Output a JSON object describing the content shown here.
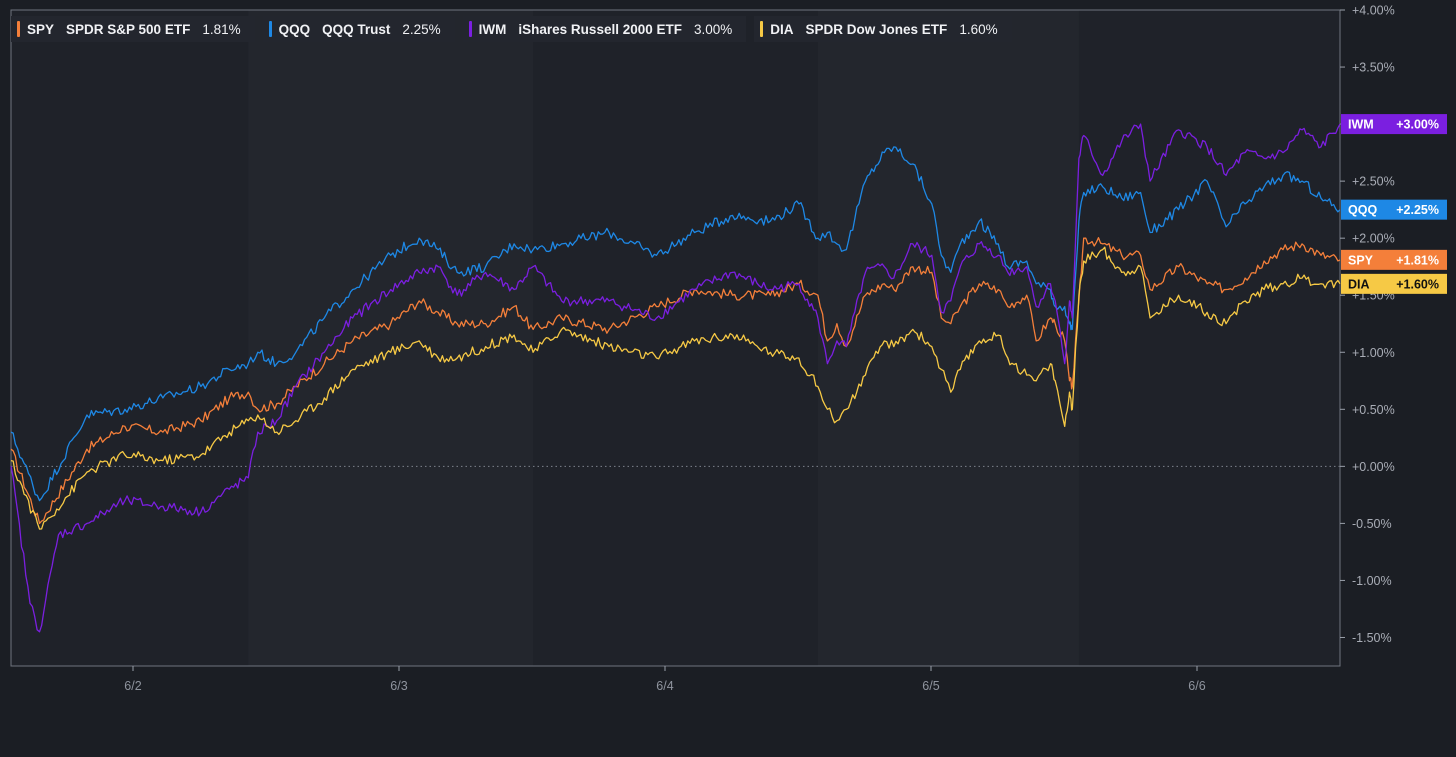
{
  "chart_data": {
    "type": "line",
    "x_ticks": [
      "6/2",
      "6/3",
      "6/4",
      "6/5",
      "6/6"
    ],
    "y_ticks": [
      "+4.00%",
      "+3.50%",
      "+3.00%",
      "+2.50%",
      "+2.00%",
      "+1.50%",
      "+1.00%",
      "+0.50%",
      "+0.00%",
      "-0.50%",
      "-1.00%",
      "-1.50%"
    ],
    "ylim": [
      -1.75,
      4.0
    ],
    "zero_line": true,
    "colors": {
      "background": "#1b1e24",
      "plot_bg": "#1f2229",
      "session_shade": "#23262d",
      "axis": "#9aa0aa",
      "zero": "#7d828c"
    },
    "series": [
      {
        "ticker": "SPY",
        "name": "SPDR S&P 500 ETF",
        "legend_value": "1.81%",
        "label": "+1.81%",
        "color": "#f47f3a",
        "label_text_color": "#ffffff",
        "last": 1.81,
        "points": [
          [
            0,
            0.15
          ],
          [
            0.3,
            -0.5
          ],
          [
            0.8,
            0.15
          ],
          [
            1.2,
            0.35
          ],
          [
            1.6,
            0.3
          ],
          [
            2.0,
            0.4
          ],
          [
            2.3,
            0.6
          ],
          [
            2.5,
            0.65
          ],
          [
            2.6,
            0.5
          ],
          [
            2.8,
            0.55
          ],
          [
            3.0,
            0.7
          ],
          [
            3.3,
            0.9
          ],
          [
            3.6,
            1.1
          ],
          [
            4.0,
            1.25
          ],
          [
            4.3,
            1.45
          ],
          [
            4.5,
            1.35
          ],
          [
            4.7,
            1.25
          ],
          [
            5.0,
            1.25
          ],
          [
            5.3,
            1.4
          ],
          [
            5.5,
            1.2
          ],
          [
            5.8,
            1.3
          ],
          [
            6.3,
            1.2
          ],
          [
            6.8,
            1.4
          ],
          [
            7.2,
            1.55
          ],
          [
            7.6,
            1.5
          ],
          [
            8.0,
            1.5
          ],
          [
            8.3,
            1.6
          ],
          [
            8.5,
            1.5
          ],
          [
            8.6,
            1.1
          ],
          [
            8.7,
            1.25
          ],
          [
            8.8,
            1.05
          ],
          [
            9.0,
            1.5
          ],
          [
            9.2,
            1.6
          ],
          [
            9.3,
            1.55
          ],
          [
            9.5,
            1.75
          ],
          [
            9.7,
            1.7
          ],
          [
            9.8,
            1.3
          ],
          [
            9.9,
            1.25
          ],
          [
            10.0,
            1.4
          ],
          [
            10.2,
            1.6
          ],
          [
            10.4,
            1.55
          ],
          [
            10.5,
            1.4
          ],
          [
            10.7,
            1.5
          ],
          [
            10.8,
            1.1
          ],
          [
            10.95,
            1.3
          ],
          [
            11.0,
            1.25
          ],
          [
            11.1,
            1.1
          ],
          [
            11.15,
            0.75
          ],
          [
            11.18,
            0.7
          ],
          [
            11.25,
            1.45
          ],
          [
            11.3,
            2.0
          ],
          [
            11.5,
            1.95
          ],
          [
            11.7,
            1.85
          ],
          [
            11.9,
            1.85
          ],
          [
            12.0,
            1.55
          ],
          [
            12.3,
            1.75
          ],
          [
            12.6,
            1.6
          ],
          [
            12.8,
            1.55
          ],
          [
            13.0,
            1.65
          ],
          [
            13.2,
            1.8
          ],
          [
            13.4,
            1.9
          ],
          [
            13.6,
            1.95
          ],
          [
            13.8,
            1.85
          ],
          [
            14.0,
            1.81
          ]
        ]
      },
      {
        "ticker": "QQQ",
        "name": "QQQ Trust",
        "legend_value": "2.25%",
        "label": "+2.25%",
        "color": "#1e88e5",
        "label_text_color": "#ffffff",
        "last": 2.25,
        "points": [
          [
            0,
            0.3
          ],
          [
            0.3,
            -0.3
          ],
          [
            0.8,
            0.45
          ],
          [
            1.2,
            0.5
          ],
          [
            1.6,
            0.6
          ],
          [
            2.0,
            0.7
          ],
          [
            2.3,
            0.85
          ],
          [
            2.5,
            0.9
          ],
          [
            2.6,
            1.0
          ],
          [
            2.8,
            0.9
          ],
          [
            3.0,
            1.0
          ],
          [
            3.3,
            1.3
          ],
          [
            3.6,
            1.55
          ],
          [
            4.0,
            1.85
          ],
          [
            4.3,
            2.0
          ],
          [
            4.5,
            1.9
          ],
          [
            4.7,
            1.7
          ],
          [
            5.0,
            1.75
          ],
          [
            5.3,
            1.95
          ],
          [
            5.5,
            1.9
          ],
          [
            5.8,
            1.95
          ],
          [
            6.3,
            2.05
          ],
          [
            6.8,
            1.85
          ],
          [
            7.2,
            2.05
          ],
          [
            7.6,
            2.2
          ],
          [
            8.0,
            2.15
          ],
          [
            8.3,
            2.3
          ],
          [
            8.5,
            2.0
          ],
          [
            8.6,
            2.05
          ],
          [
            8.7,
            1.95
          ],
          [
            8.8,
            1.9
          ],
          [
            9.0,
            2.5
          ],
          [
            9.2,
            2.75
          ],
          [
            9.3,
            2.8
          ],
          [
            9.5,
            2.65
          ],
          [
            9.7,
            2.3
          ],
          [
            9.8,
            1.85
          ],
          [
            9.9,
            1.7
          ],
          [
            10.0,
            1.95
          ],
          [
            10.2,
            2.15
          ],
          [
            10.4,
            1.95
          ],
          [
            10.5,
            1.75
          ],
          [
            10.7,
            1.8
          ],
          [
            10.8,
            1.6
          ],
          [
            10.95,
            1.55
          ],
          [
            11.0,
            1.4
          ],
          [
            11.1,
            1.4
          ],
          [
            11.15,
            1.25
          ],
          [
            11.18,
            1.2
          ],
          [
            11.25,
            2.15
          ],
          [
            11.3,
            2.4
          ],
          [
            11.5,
            2.45
          ],
          [
            11.7,
            2.35
          ],
          [
            11.9,
            2.4
          ],
          [
            12.0,
            2.05
          ],
          [
            12.3,
            2.25
          ],
          [
            12.6,
            2.5
          ],
          [
            12.8,
            2.1
          ],
          [
            13.0,
            2.3
          ],
          [
            13.2,
            2.45
          ],
          [
            13.4,
            2.55
          ],
          [
            13.6,
            2.5
          ],
          [
            13.8,
            2.35
          ],
          [
            14.0,
            2.25
          ]
        ]
      },
      {
        "ticker": "IWM",
        "name": "iShares Russell 2000 ETF",
        "legend_value": "3.00%",
        "label": "+3.00%",
        "color": "#7b1fe0",
        "label_text_color": "#ffffff",
        "last": 3.0,
        "points": [
          [
            0,
            0.0
          ],
          [
            0.2,
            -1.2
          ],
          [
            0.3,
            -1.45
          ],
          [
            0.5,
            -0.6
          ],
          [
            0.8,
            -0.5
          ],
          [
            1.2,
            -0.3
          ],
          [
            1.6,
            -0.35
          ],
          [
            2.0,
            -0.4
          ],
          [
            2.3,
            -0.2
          ],
          [
            2.5,
            -0.1
          ],
          [
            2.6,
            0.3
          ],
          [
            2.8,
            0.4
          ],
          [
            3.0,
            0.7
          ],
          [
            3.3,
            1.0
          ],
          [
            3.6,
            1.3
          ],
          [
            4.0,
            1.55
          ],
          [
            4.3,
            1.7
          ],
          [
            4.5,
            1.75
          ],
          [
            4.7,
            1.5
          ],
          [
            5.0,
            1.7
          ],
          [
            5.3,
            1.55
          ],
          [
            5.5,
            1.75
          ],
          [
            5.8,
            1.45
          ],
          [
            6.3,
            1.45
          ],
          [
            6.8,
            1.3
          ],
          [
            7.2,
            1.55
          ],
          [
            7.6,
            1.7
          ],
          [
            8.0,
            1.55
          ],
          [
            8.3,
            1.6
          ],
          [
            8.5,
            1.3
          ],
          [
            8.6,
            0.9
          ],
          [
            8.7,
            1.1
          ],
          [
            8.8,
            1.05
          ],
          [
            9.0,
            1.7
          ],
          [
            9.2,
            1.75
          ],
          [
            9.3,
            1.65
          ],
          [
            9.5,
            1.95
          ],
          [
            9.7,
            1.85
          ],
          [
            9.8,
            1.35
          ],
          [
            9.9,
            1.45
          ],
          [
            10.0,
            1.75
          ],
          [
            10.2,
            1.95
          ],
          [
            10.4,
            1.85
          ],
          [
            10.5,
            1.7
          ],
          [
            10.7,
            1.75
          ],
          [
            10.8,
            1.4
          ],
          [
            10.95,
            1.6
          ],
          [
            11.0,
            1.45
          ],
          [
            11.1,
            0.9
          ],
          [
            11.15,
            1.45
          ],
          [
            11.18,
            1.3
          ],
          [
            11.25,
            2.7
          ],
          [
            11.3,
            2.9
          ],
          [
            11.5,
            2.55
          ],
          [
            11.7,
            2.85
          ],
          [
            11.9,
            3.0
          ],
          [
            12.0,
            2.5
          ],
          [
            12.3,
            2.95
          ],
          [
            12.6,
            2.8
          ],
          [
            12.8,
            2.55
          ],
          [
            13.0,
            2.75
          ],
          [
            13.2,
            2.7
          ],
          [
            13.4,
            2.75
          ],
          [
            13.6,
            2.95
          ],
          [
            13.8,
            2.8
          ],
          [
            14.0,
            3.0
          ]
        ]
      },
      {
        "ticker": "DIA",
        "name": "SPDR Dow Jones ETF",
        "legend_value": "1.60%",
        "label": "+1.60%",
        "color": "#f6c945",
        "label_text_color": "#111111",
        "last": 1.6,
        "points": [
          [
            0,
            0.05
          ],
          [
            0.3,
            -0.55
          ],
          [
            0.8,
            -0.05
          ],
          [
            1.2,
            0.1
          ],
          [
            1.6,
            0.05
          ],
          [
            2.0,
            0.1
          ],
          [
            2.3,
            0.3
          ],
          [
            2.5,
            0.4
          ],
          [
            2.6,
            0.45
          ],
          [
            2.8,
            0.3
          ],
          [
            3.0,
            0.4
          ],
          [
            3.3,
            0.6
          ],
          [
            3.6,
            0.85
          ],
          [
            4.0,
            1.0
          ],
          [
            4.3,
            1.1
          ],
          [
            4.5,
            0.95
          ],
          [
            4.7,
            0.95
          ],
          [
            5.0,
            1.05
          ],
          [
            5.3,
            1.15
          ],
          [
            5.5,
            1.0
          ],
          [
            5.8,
            1.2
          ],
          [
            6.3,
            1.05
          ],
          [
            6.8,
            0.95
          ],
          [
            7.2,
            1.1
          ],
          [
            7.6,
            1.15
          ],
          [
            8.0,
            1.0
          ],
          [
            8.3,
            0.95
          ],
          [
            8.5,
            0.7
          ],
          [
            8.6,
            0.5
          ],
          [
            8.7,
            0.4
          ],
          [
            8.8,
            0.5
          ],
          [
            9.0,
            0.8
          ],
          [
            9.2,
            1.1
          ],
          [
            9.3,
            1.05
          ],
          [
            9.5,
            1.2
          ],
          [
            9.7,
            1.05
          ],
          [
            9.8,
            0.85
          ],
          [
            9.9,
            0.65
          ],
          [
            10.0,
            0.85
          ],
          [
            10.2,
            1.1
          ],
          [
            10.4,
            1.15
          ],
          [
            10.5,
            0.95
          ],
          [
            10.7,
            0.8
          ],
          [
            10.8,
            0.75
          ],
          [
            10.95,
            0.9
          ],
          [
            11.0,
            0.75
          ],
          [
            11.1,
            0.35
          ],
          [
            11.15,
            0.65
          ],
          [
            11.18,
            0.5
          ],
          [
            11.25,
            1.5
          ],
          [
            11.3,
            1.8
          ],
          [
            11.5,
            1.9
          ],
          [
            11.7,
            1.7
          ],
          [
            11.9,
            1.75
          ],
          [
            12.0,
            1.3
          ],
          [
            12.3,
            1.5
          ],
          [
            12.6,
            1.35
          ],
          [
            12.8,
            1.25
          ],
          [
            13.0,
            1.45
          ],
          [
            13.2,
            1.55
          ],
          [
            13.4,
            1.6
          ],
          [
            13.6,
            1.65
          ],
          [
            13.8,
            1.6
          ],
          [
            14.0,
            1.6
          ]
        ]
      }
    ]
  }
}
